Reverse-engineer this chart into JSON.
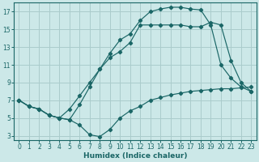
{
  "xlabel": "Humidex (Indice chaleur)",
  "bg_color": "#cce8e8",
  "grid_color": "#aacccc",
  "line_color": "#1a6666",
  "xlim": [
    -0.5,
    23.5
  ],
  "ylim": [
    2.5,
    18.0
  ],
  "yticks": [
    3,
    5,
    7,
    9,
    11,
    13,
    15,
    17
  ],
  "xticks": [
    0,
    1,
    2,
    3,
    4,
    5,
    6,
    7,
    8,
    9,
    10,
    11,
    12,
    13,
    14,
    15,
    16,
    17,
    18,
    19,
    20,
    21,
    22,
    23
  ],
  "line1_x": [
    0,
    1,
    2,
    3,
    4,
    5,
    6,
    7,
    8,
    9,
    10,
    11,
    12,
    13,
    14,
    15,
    16,
    17,
    18,
    19,
    20,
    21,
    22,
    23
  ],
  "line1_y": [
    7.0,
    6.3,
    6.0,
    5.3,
    5.0,
    4.8,
    4.2,
    3.1,
    2.9,
    3.7,
    5.0,
    5.8,
    6.3,
    7.0,
    7.3,
    7.6,
    7.8,
    8.0,
    8.1,
    8.2,
    8.3,
    8.3,
    8.4,
    8.5
  ],
  "line2_x": [
    0,
    1,
    2,
    3,
    4,
    5,
    6,
    7,
    8,
    9,
    10,
    11,
    12,
    13,
    14,
    15,
    16,
    17,
    18,
    19,
    20,
    21,
    22,
    23
  ],
  "line2_y": [
    7.0,
    6.3,
    6.0,
    5.3,
    5.0,
    4.8,
    6.5,
    8.5,
    10.5,
    12.3,
    13.8,
    14.5,
    16.0,
    17.0,
    17.3,
    17.5,
    17.5,
    17.3,
    17.2,
    15.5,
    11.0,
    9.5,
    8.5,
    8.0
  ],
  "line3_x": [
    0,
    1,
    2,
    3,
    4,
    5,
    6,
    7,
    8,
    9,
    10,
    11,
    12,
    13,
    14,
    15,
    16,
    17,
    18,
    19,
    20,
    21,
    22,
    23
  ],
  "line3_y": [
    7.0,
    6.3,
    6.0,
    5.3,
    5.0,
    6.0,
    7.5,
    9.0,
    10.5,
    11.8,
    12.5,
    13.5,
    15.5,
    15.5,
    15.5,
    15.5,
    15.5,
    15.3,
    15.3,
    15.8,
    15.5,
    11.5,
    9.0,
    8.0
  ]
}
